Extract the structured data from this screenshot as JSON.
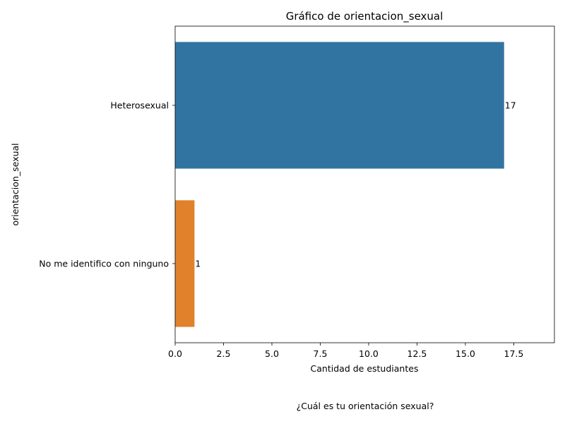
{
  "chart_data": {
    "type": "bar",
    "orientation": "horizontal",
    "title": "Gráfico de orientacion_sexual",
    "xlabel": "Cantidad de estudiantes",
    "ylabel": "orientacion_sexual",
    "caption": "¿Cuál es tu orientación sexual?",
    "categories": [
      "Heterosexual",
      "No me identifico con ninguno"
    ],
    "values": [
      17,
      1
    ],
    "data_labels": [
      "17",
      "1"
    ],
    "colors": [
      "#3274a1",
      "#e1812c"
    ],
    "xlim": [
      0,
      19.6
    ],
    "xticks": [
      0,
      2.5,
      5,
      7.5,
      10,
      12.5,
      15,
      17.5
    ],
    "xtick_labels": [
      "0.0",
      "2.5",
      "5.0",
      "7.5",
      "10.0",
      "12.5",
      "15.0",
      "17.5"
    ],
    "grid": false,
    "legend": "none"
  }
}
